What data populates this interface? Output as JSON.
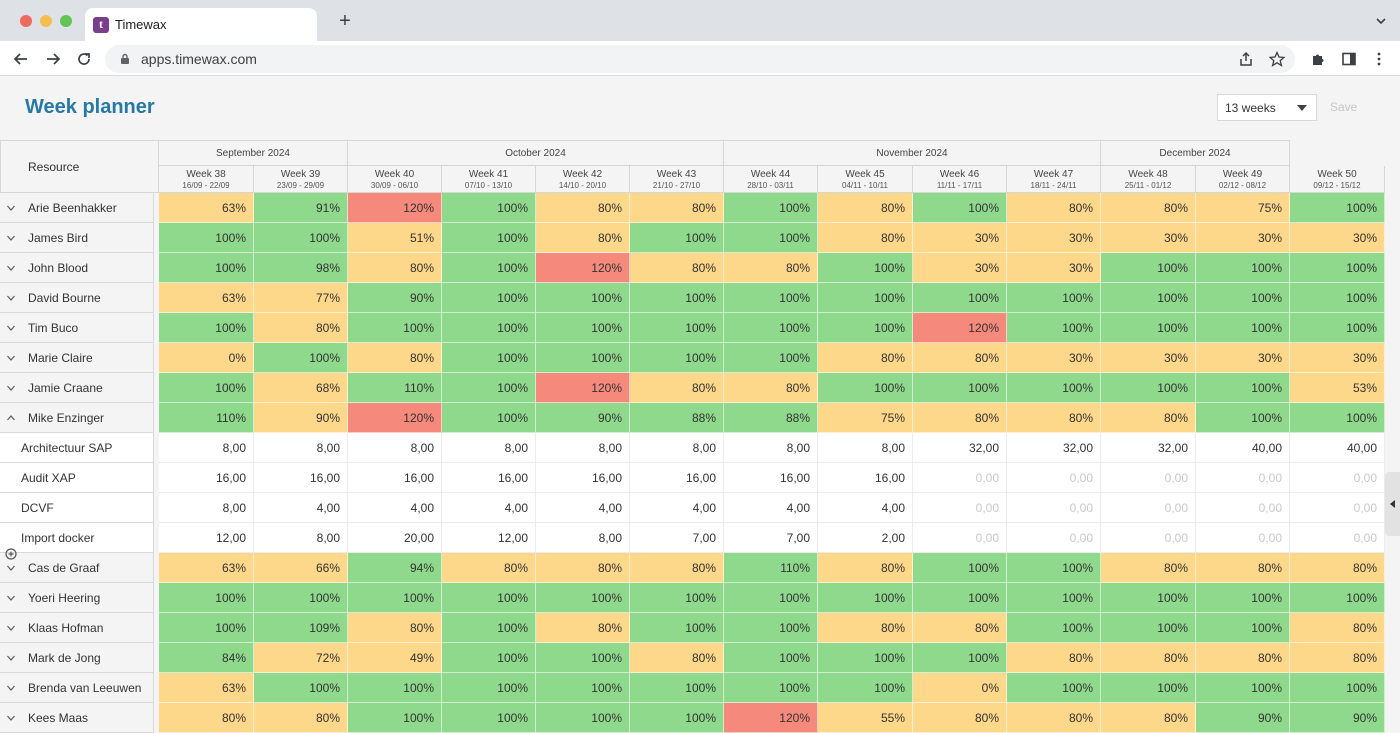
{
  "browser": {
    "tab_title": "Timewax",
    "favicon_letter": "t",
    "url": "apps.timewax.com"
  },
  "app": {
    "page_title": "Week planner",
    "weeks_select": "13 weeks",
    "save_label": "Save"
  },
  "colors": {
    "green": "#8fd98d",
    "yellow": "#fdd78a",
    "red": "#f5897b",
    "title": "#2579a7"
  },
  "grid": {
    "resource_header": "Resource",
    "months": [
      {
        "label": "September 2024",
        "span": 2
      },
      {
        "label": "October 2024",
        "span": 4
      },
      {
        "label": "November 2024",
        "span": 4
      },
      {
        "label": "December 2024",
        "span": 2
      }
    ],
    "weeks": [
      {
        "label": "Week 38",
        "dates": "16/09 - 22/09"
      },
      {
        "label": "Week 39",
        "dates": "23/09 - 29/09"
      },
      {
        "label": "Week 40",
        "dates": "30/09 - 06/10"
      },
      {
        "label": "Week 41",
        "dates": "07/10 - 13/10"
      },
      {
        "label": "Week 42",
        "dates": "14/10 - 20/10"
      },
      {
        "label": "Week 43",
        "dates": "21/10 - 27/10"
      },
      {
        "label": "Week 44",
        "dates": "28/10 - 03/11"
      },
      {
        "label": "Week 45",
        "dates": "04/11 - 10/11"
      },
      {
        "label": "Week 46",
        "dates": "11/11 - 17/11"
      },
      {
        "label": "Week 47",
        "dates": "18/11 - 24/11"
      },
      {
        "label": "Week 48",
        "dates": "25/11 - 01/12"
      },
      {
        "label": "Week 49",
        "dates": "02/12 - 08/12"
      },
      {
        "label": "Week 50",
        "dates": "09/12 - 15/12"
      }
    ],
    "rows": [
      {
        "name": "Arie Beenhakker",
        "type": "person",
        "expanded": false,
        "values": [
          "63%",
          "91%",
          "120%",
          "100%",
          "80%",
          "80%",
          "100%",
          "80%",
          "100%",
          "80%",
          "80%",
          "75%",
          "100%"
        ],
        "status": [
          "y",
          "g",
          "r",
          "g",
          "y",
          "y",
          "g",
          "y",
          "g",
          "y",
          "y",
          "y",
          "g"
        ]
      },
      {
        "name": "James Bird",
        "type": "person",
        "expanded": false,
        "values": [
          "100%",
          "100%",
          "51%",
          "100%",
          "80%",
          "100%",
          "100%",
          "80%",
          "30%",
          "30%",
          "30%",
          "30%",
          "30%"
        ],
        "status": [
          "g",
          "g",
          "y",
          "g",
          "y",
          "g",
          "g",
          "y",
          "y",
          "y",
          "y",
          "y",
          "y"
        ]
      },
      {
        "name": "John Blood",
        "type": "person",
        "expanded": false,
        "values": [
          "100%",
          "98%",
          "80%",
          "100%",
          "120%",
          "80%",
          "80%",
          "100%",
          "30%",
          "30%",
          "100%",
          "100%",
          "100%"
        ],
        "status": [
          "g",
          "g",
          "y",
          "g",
          "r",
          "y",
          "y",
          "g",
          "y",
          "y",
          "g",
          "g",
          "g"
        ]
      },
      {
        "name": "David Bourne",
        "type": "person",
        "expanded": false,
        "values": [
          "63%",
          "77%",
          "90%",
          "100%",
          "100%",
          "100%",
          "100%",
          "100%",
          "100%",
          "100%",
          "100%",
          "100%",
          "100%"
        ],
        "status": [
          "y",
          "y",
          "g",
          "g",
          "g",
          "g",
          "g",
          "g",
          "g",
          "g",
          "g",
          "g",
          "g"
        ]
      },
      {
        "name": "Tim Buco",
        "type": "person",
        "expanded": false,
        "values": [
          "100%",
          "80%",
          "100%",
          "100%",
          "100%",
          "100%",
          "100%",
          "100%",
          "120%",
          "100%",
          "100%",
          "100%",
          "100%"
        ],
        "status": [
          "g",
          "y",
          "g",
          "g",
          "g",
          "g",
          "g",
          "g",
          "r",
          "g",
          "g",
          "g",
          "g"
        ]
      },
      {
        "name": "Marie Claire",
        "type": "person",
        "expanded": false,
        "values": [
          "0%",
          "100%",
          "80%",
          "100%",
          "100%",
          "100%",
          "100%",
          "80%",
          "80%",
          "30%",
          "30%",
          "30%",
          "30%"
        ],
        "status": [
          "y",
          "g",
          "y",
          "g",
          "g",
          "g",
          "g",
          "y",
          "y",
          "y",
          "y",
          "y",
          "y"
        ]
      },
      {
        "name": "Jamie Craane",
        "type": "person",
        "expanded": false,
        "values": [
          "100%",
          "68%",
          "110%",
          "100%",
          "120%",
          "80%",
          "80%",
          "100%",
          "100%",
          "100%",
          "100%",
          "100%",
          "53%"
        ],
        "status": [
          "g",
          "y",
          "g",
          "g",
          "r",
          "y",
          "y",
          "g",
          "g",
          "g",
          "g",
          "g",
          "y"
        ]
      },
      {
        "name": "Mike Enzinger",
        "type": "person",
        "expanded": true,
        "values": [
          "110%",
          "90%",
          "120%",
          "100%",
          "90%",
          "88%",
          "88%",
          "75%",
          "80%",
          "80%",
          "80%",
          "100%",
          "100%"
        ],
        "status": [
          "g",
          "y",
          "r",
          "g",
          "g",
          "g",
          "g",
          "y",
          "y",
          "y",
          "y",
          "g",
          "g"
        ]
      },
      {
        "name": "Architectuur SAP",
        "type": "project",
        "values": [
          "8,00",
          "8,00",
          "8,00",
          "8,00",
          "8,00",
          "8,00",
          "8,00",
          "8,00",
          "32,00",
          "32,00",
          "32,00",
          "40,00",
          "40,00"
        ]
      },
      {
        "name": "Audit XAP",
        "type": "project",
        "values": [
          "16,00",
          "16,00",
          "16,00",
          "16,00",
          "16,00",
          "16,00",
          "16,00",
          "16,00",
          "0,00",
          "0,00",
          "0,00",
          "0,00",
          "0,00"
        ]
      },
      {
        "name": "DCVF",
        "type": "project",
        "values": [
          "8,00",
          "4,00",
          "4,00",
          "4,00",
          "4,00",
          "4,00",
          "4,00",
          "4,00",
          "0,00",
          "0,00",
          "0,00",
          "0,00",
          "0,00"
        ]
      },
      {
        "name": "Import docker",
        "type": "project",
        "values": [
          "12,00",
          "8,00",
          "20,00",
          "12,00",
          "8,00",
          "7,00",
          "7,00",
          "2,00",
          "0,00",
          "0,00",
          "0,00",
          "0,00",
          "0,00"
        ]
      },
      {
        "name": "Cas de Graaf",
        "type": "person",
        "expanded": false,
        "values": [
          "63%",
          "66%",
          "94%",
          "80%",
          "80%",
          "80%",
          "110%",
          "80%",
          "100%",
          "100%",
          "80%",
          "80%",
          "80%"
        ],
        "status": [
          "y",
          "y",
          "g",
          "y",
          "y",
          "y",
          "g",
          "y",
          "g",
          "g",
          "y",
          "y",
          "y"
        ]
      },
      {
        "name": "Yoeri Heering",
        "type": "person",
        "expanded": false,
        "values": [
          "100%",
          "100%",
          "100%",
          "100%",
          "100%",
          "100%",
          "100%",
          "100%",
          "100%",
          "100%",
          "100%",
          "100%",
          "100%"
        ],
        "status": [
          "g",
          "g",
          "g",
          "g",
          "g",
          "g",
          "g",
          "g",
          "g",
          "g",
          "g",
          "g",
          "g"
        ]
      },
      {
        "name": "Klaas Hofman",
        "type": "person",
        "expanded": false,
        "values": [
          "100%",
          "109%",
          "80%",
          "100%",
          "80%",
          "100%",
          "100%",
          "80%",
          "80%",
          "100%",
          "100%",
          "100%",
          "80%"
        ],
        "status": [
          "g",
          "g",
          "y",
          "g",
          "y",
          "g",
          "g",
          "y",
          "y",
          "g",
          "g",
          "g",
          "y"
        ]
      },
      {
        "name": "Mark de Jong",
        "type": "person",
        "expanded": false,
        "values": [
          "84%",
          "72%",
          "49%",
          "100%",
          "100%",
          "80%",
          "100%",
          "100%",
          "100%",
          "80%",
          "80%",
          "80%",
          "80%"
        ],
        "status": [
          "g",
          "y",
          "y",
          "g",
          "g",
          "y",
          "g",
          "g",
          "g",
          "y",
          "y",
          "y",
          "y"
        ]
      },
      {
        "name": "Brenda van Leeuwen",
        "type": "person",
        "expanded": false,
        "values": [
          "63%",
          "100%",
          "100%",
          "100%",
          "100%",
          "100%",
          "100%",
          "100%",
          "0%",
          "100%",
          "100%",
          "100%",
          "100%"
        ],
        "status": [
          "y",
          "g",
          "g",
          "g",
          "g",
          "g",
          "g",
          "g",
          "y",
          "g",
          "g",
          "g",
          "g"
        ]
      },
      {
        "name": "Kees Maas",
        "type": "person",
        "expanded": false,
        "values": [
          "80%",
          "80%",
          "100%",
          "100%",
          "100%",
          "100%",
          "120%",
          "55%",
          "80%",
          "80%",
          "80%",
          "90%",
          "90%"
        ],
        "status": [
          "y",
          "y",
          "g",
          "g",
          "g",
          "g",
          "r",
          "y",
          "y",
          "y",
          "y",
          "g",
          "g"
        ]
      }
    ]
  }
}
